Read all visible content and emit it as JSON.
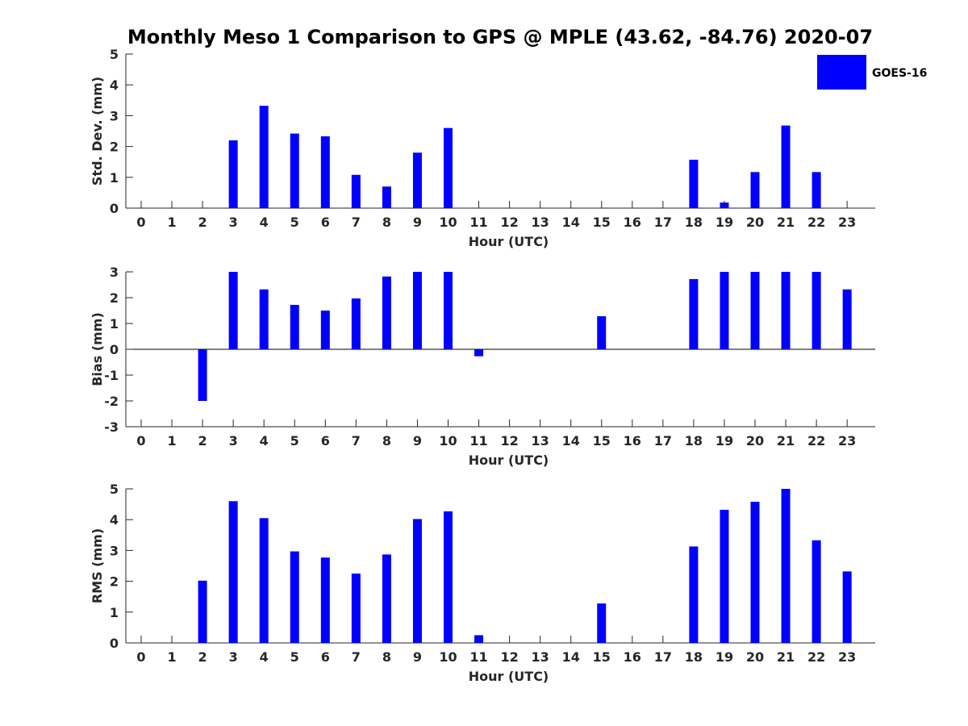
{
  "page_title": "Monthly Meso 1 Comparison to GPS @ MPLE (43.62, -84.76) 2020-07",
  "legend": {
    "label": "GOES-16",
    "color": "#0000ff"
  },
  "chart_data": [
    {
      "id": "stddev",
      "type": "bar",
      "title": "Monthly Meso 1 Comparison to GPS @ MPLE (43.62, -84.76) 2020-07",
      "xlabel": "Hour (UTC)",
      "ylabel": "Std. Dev. (mm)",
      "ylim": [
        0,
        5
      ],
      "yticks": [
        "0",
        "1",
        "2",
        "3",
        "4",
        "5"
      ],
      "categories": [
        "0",
        "1",
        "2",
        "3",
        "4",
        "5",
        "6",
        "7",
        "8",
        "9",
        "10",
        "11",
        "12",
        "13",
        "14",
        "15",
        "16",
        "17",
        "18",
        "19",
        "20",
        "21",
        "22",
        "23"
      ],
      "series": [
        {
          "name": "GOES-16",
          "color": "#0000ff",
          "values": [
            null,
            null,
            null,
            2.2,
            3.32,
            2.42,
            2.33,
            1.08,
            0.7,
            1.8,
            2.6,
            null,
            null,
            null,
            null,
            null,
            null,
            null,
            1.57,
            0.18,
            1.17,
            2.68,
            1.17,
            null
          ]
        }
      ],
      "grid": false
    },
    {
      "id": "bias",
      "type": "bar",
      "title": "",
      "xlabel": "Hour (UTC)",
      "ylabel": "Bias (mm)",
      "ylim": [
        -3,
        3
      ],
      "yticks": [
        "-3",
        "-2",
        "-1",
        "0",
        "1",
        "2",
        "3"
      ],
      "categories": [
        "0",
        "1",
        "2",
        "3",
        "4",
        "5",
        "6",
        "7",
        "8",
        "9",
        "10",
        "11",
        "12",
        "13",
        "14",
        "15",
        "16",
        "17",
        "18",
        "19",
        "20",
        "21",
        "22",
        "23"
      ],
      "series": [
        {
          "name": "GOES-16",
          "color": "#0000ff",
          "values": [
            null,
            null,
            -2.0,
            3.0,
            2.32,
            1.72,
            1.5,
            1.97,
            2.82,
            3.0,
            3.0,
            -0.27,
            null,
            null,
            null,
            1.28,
            null,
            null,
            2.72,
            3.0,
            3.0,
            3.0,
            3.0,
            2.32
          ]
        }
      ],
      "grid": false
    },
    {
      "id": "rms",
      "type": "bar",
      "title": "",
      "xlabel": "Hour (UTC)",
      "ylabel": "RMS (mm)",
      "ylim": [
        0,
        5
      ],
      "yticks": [
        "0",
        "1",
        "2",
        "3",
        "4",
        "5"
      ],
      "categories": [
        "0",
        "1",
        "2",
        "3",
        "4",
        "5",
        "6",
        "7",
        "8",
        "9",
        "10",
        "11",
        "12",
        "13",
        "14",
        "15",
        "16",
        "17",
        "18",
        "19",
        "20",
        "21",
        "22",
        "23"
      ],
      "series": [
        {
          "name": "GOES-16",
          "color": "#0000ff",
          "values": [
            null,
            null,
            2.02,
            4.6,
            4.05,
            2.97,
            2.77,
            2.25,
            2.87,
            4.02,
            4.27,
            0.25,
            null,
            null,
            null,
            1.28,
            null,
            null,
            3.13,
            4.32,
            4.58,
            5.0,
            3.33,
            2.32
          ]
        }
      ],
      "grid": false
    }
  ]
}
